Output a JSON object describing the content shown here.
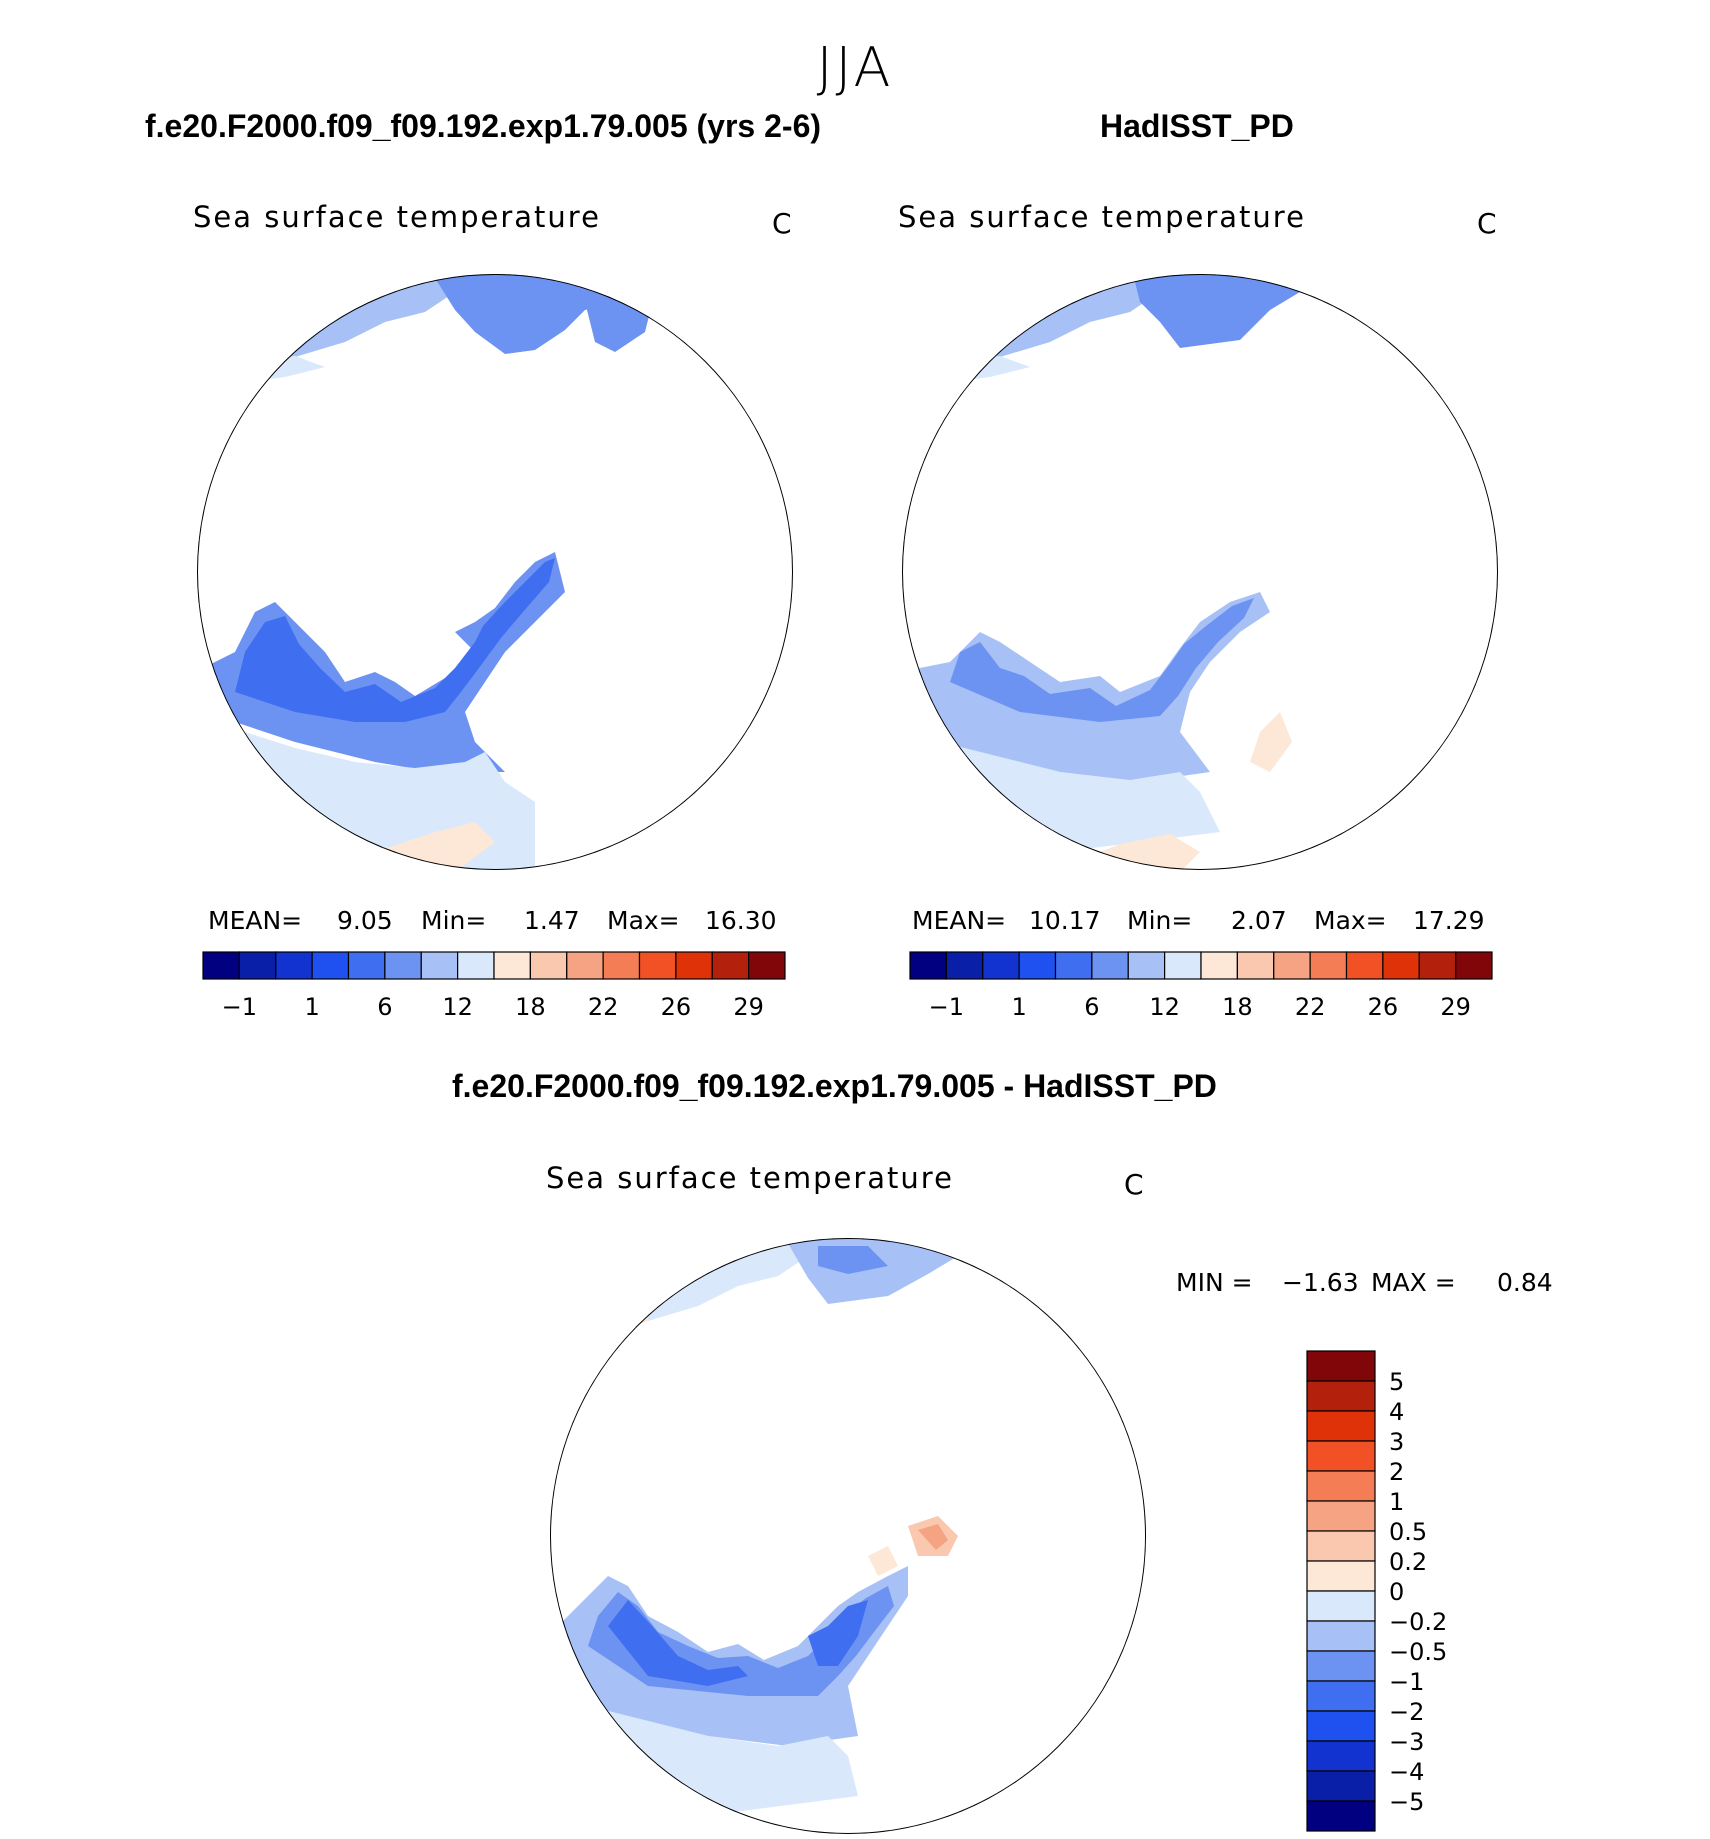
{
  "figure": {
    "season": "JJA",
    "panels": [
      {
        "id": "model",
        "title": "f.e20.F2000.f09_f09.192.exp1.79.005 (yrs 2-6)",
        "variable": "Sea surface temperature",
        "units": "C",
        "stats": {
          "mean_label": "MEAN=",
          "mean": "9.05",
          "min_label": "Min=",
          "min": "1.47",
          "max_label": "Max=",
          "max": "16.30"
        }
      },
      {
        "id": "obs",
        "title": "HadISST_PD",
        "variable": "Sea surface temperature",
        "units": "C",
        "stats": {
          "mean_label": "MEAN=",
          "mean": "10.17",
          "min_label": "Min=",
          "min": "2.07",
          "max_label": "Max=",
          "max": "17.29"
        }
      },
      {
        "id": "diff",
        "title": "f.e20.F2000.f09_f09.192.exp1.79.005 - HadISST_PD",
        "variable": "Sea surface temperature",
        "units": "C",
        "stats": {
          "min_label": "MIN =",
          "min": "−1.63",
          "max_label": "MAX =",
          "max": "0.84"
        }
      }
    ]
  },
  "colorbars": {
    "absolute": {
      "colors": [
        "#000080",
        "#0a1fa8",
        "#1233d0",
        "#1f50f0",
        "#3f6ff0",
        "#6d93f2",
        "#a7c0f5",
        "#d9e8fb",
        "#fde8d8",
        "#fac8af",
        "#f5a383",
        "#f47d55",
        "#f25025",
        "#e03208",
        "#b3200c",
        "#80060a"
      ],
      "tick_labels": [
        "−1",
        "1",
        "6",
        "12",
        "18",
        "22",
        "26",
        "29"
      ]
    },
    "difference": {
      "colors_top_to_bottom": [
        "#80060a",
        "#b3200c",
        "#e03208",
        "#f25025",
        "#f47d55",
        "#f5a383",
        "#fac8af",
        "#fde8d8",
        "#d9e8fb",
        "#a7c0f5",
        "#6d93f2",
        "#3f6ff0",
        "#1f50f0",
        "#1233d0",
        "#0a1fa8",
        "#000080"
      ],
      "tick_labels": [
        "5",
        "4",
        "3",
        "2",
        "1",
        "0.5",
        "0.2",
        "0",
        "−0.2",
        "−0.5",
        "−1",
        "−2",
        "−3",
        "−4",
        "−5"
      ]
    }
  }
}
